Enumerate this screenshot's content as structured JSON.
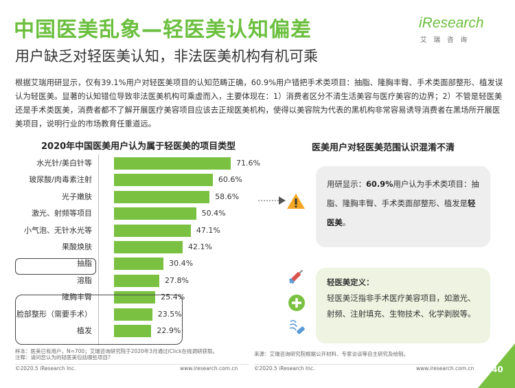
{
  "header": {
    "title": "中国医美乱象—轻医美认知偏差",
    "subtitle": "用户缺乏对轻医美认知，非法医美机构有机可乘"
  },
  "logo": {
    "word": "iResearch",
    "sub": "艾瑞咨询"
  },
  "intro": "根据艾瑞用研显示，仅有39.1%用户对轻医美项目的认知范畴正确，60.9%用户错把手术类项目：抽脂、隆胸丰臀、手术类面部整形、植发误认为轻医美。显著的认知错位导致非法医美机构可乘虚而入，主要体现在：1）消费者区分不清生活美容与医疗美容的边界；2）不管是轻医美还是手术类医美，消费者都不了解开展医疗美容项目应该去正规医美机构，使得以美容院为代表的黑机构非常容易诱导消费者在黑场所开展医美项目，说明行业的市场教育任重道远。",
  "chart_data": {
    "type": "bar",
    "orientation": "horizontal",
    "title": "2020年中国医美用户认为属于轻医美的项目类型",
    "categories": [
      "水光针/美白针等",
      "玻尿酸/肉毒素注射",
      "光子嫩肤",
      "激光、射频等项目",
      "小气泡、无针水光等",
      "果酸焕肤",
      "抽脂",
      "溶脂",
      "隆胸丰臀",
      "脸部整形（需要手术）",
      "植发"
    ],
    "values": [
      71.6,
      60.6,
      58.6,
      50.4,
      47.1,
      42.1,
      30.4,
      27.8,
      25.4,
      23.5,
      22.9
    ],
    "value_labels": [
      "71.6%",
      "60.6%",
      "58.6%",
      "50.4%",
      "47.1%",
      "42.1%",
      "30.4%",
      "27.8%",
      "25.4%",
      "23.5%",
      "22.9%"
    ],
    "xlim": [
      0,
      100
    ],
    "bar_color": "#7ac142"
  },
  "right": {
    "title": "医美用户对轻医美范围认识混淆不清",
    "box1_pre": "用研显示：",
    "box1_pct": "60.9%",
    "box1_mid": "用户认为手术类项目：抽脂、隆胸丰臀、手术类面部整形、植发是",
    "box1_hl": "轻医美",
    "box1_end": "。",
    "def_title": "轻医美定义：",
    "def_text": "轻医美泛指非手术医疗美容项目，如激光、射频、注射填充、生物技术、化学剥脱等。"
  },
  "notes": {
    "line1": "样本：医美已有用户，N=700；艾瑞咨询研究院于2020年3月通过iClick在线调研获取。",
    "line2": "注释：请问您认为的轻医美包括哪些项目?"
  },
  "source": "来源：艾瑞咨询研究院根据公开材料、专家访谈等自主研究及绘制。",
  "footer": {
    "left_copy": "©2020.5 iResearch Inc.",
    "left_url": "www.iresearch.com.cn",
    "right_copy": "©2020.5 iResearch Inc.",
    "right_url": "www.iresearch.com.cn",
    "page": "40"
  },
  "colors": {
    "accent": "#7ac142",
    "title_green": "#6bbf3e"
  },
  "icons": [
    "warning-icon",
    "syringe-icon",
    "plus-icon",
    "laser-icon",
    "arrow-icon"
  ]
}
